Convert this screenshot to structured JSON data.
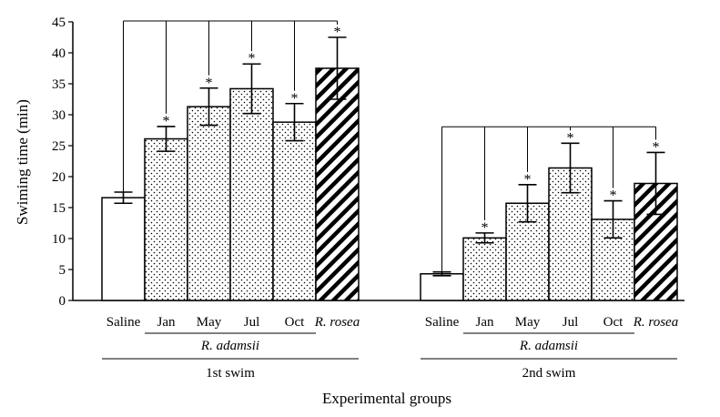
{
  "chart_data": {
    "type": "bar",
    "ylabel": "Swiming time (min)",
    "xlabel": "Experimental groups",
    "ylim": [
      0,
      45
    ],
    "yticks": [
      0,
      5,
      10,
      15,
      20,
      25,
      30,
      35,
      40,
      45
    ],
    "panels": [
      {
        "label": "1st swim",
        "subgroup_label": "R. adamsii",
        "categories": [
          "Saline",
          "Jan",
          "May",
          "Jul",
          "Oct",
          "R. rosea"
        ],
        "values": [
          16.6,
          26.1,
          31.3,
          34.2,
          28.8,
          37.5
        ],
        "errors": [
          0.9,
          2.0,
          3.0,
          4.0,
          3.0,
          5.0
        ],
        "significant": [
          false,
          true,
          true,
          true,
          true,
          true
        ],
        "fill": [
          "white",
          "dots",
          "dots",
          "dots",
          "dots",
          "hatch"
        ]
      },
      {
        "label": "2nd swim",
        "subgroup_label": "R. adamsii",
        "categories": [
          "Saline",
          "Jan",
          "May",
          "Jul",
          "Oct",
          "R. rosea"
        ],
        "values": [
          4.3,
          10.1,
          15.7,
          21.4,
          13.1,
          18.9
        ],
        "errors": [
          0.3,
          0.8,
          3.0,
          4.0,
          3.0,
          5.0
        ],
        "significant": [
          false,
          true,
          true,
          true,
          true,
          true
        ],
        "fill": [
          "white",
          "dots",
          "dots",
          "dots",
          "dots",
          "hatch"
        ]
      }
    ],
    "significance_marker": "*"
  }
}
